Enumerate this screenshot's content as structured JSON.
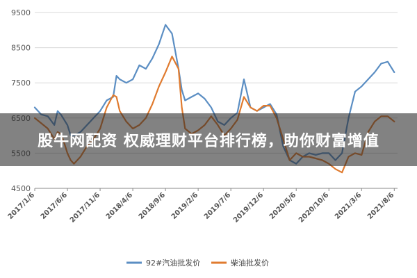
{
  "overlay": {
    "caption": "股牛网配资 权威理财平台排行榜，助你财富增值"
  },
  "colors": {
    "series1": "#5b8ec3",
    "series2": "#e07b2f",
    "grid": "#d8d8d8",
    "axis": "#888888"
  },
  "chart_data": {
    "type": "line",
    "title": "",
    "xlabel": "",
    "ylabel": "",
    "ylim": [
      4500,
      9500
    ],
    "yticks": [
      4500,
      5500,
      6500,
      7500,
      8500,
      9500
    ],
    "x_tick_labels": [
      "2017/1/6",
      "2017/6/6",
      "2017/11/6",
      "2018/4/6",
      "2018/9/6",
      "2019/2/6",
      "2019/7/6",
      "2019/12/6",
      "2020/5/6",
      "2020/10/6",
      "2021/3/6",
      "2021/8/6"
    ],
    "xlim": [
      0,
      55.5
    ],
    "grid": "horizontal",
    "legend": "bottom",
    "series": [
      {
        "name": "92#汽油批发价",
        "points": [
          [
            0,
            6800
          ],
          [
            1,
            6600
          ],
          [
            2,
            6550
          ],
          [
            3,
            6300
          ],
          [
            3.5,
            6700
          ],
          [
            4,
            6600
          ],
          [
            4.5,
            6450
          ],
          [
            5,
            6300
          ],
          [
            5.5,
            6000
          ],
          [
            6,
            6000
          ],
          [
            7,
            6100
          ],
          [
            8,
            6300
          ],
          [
            9,
            6500
          ],
          [
            10,
            6700
          ],
          [
            11,
            7000
          ],
          [
            12,
            7100
          ],
          [
            12.5,
            7700
          ],
          [
            13,
            7600
          ],
          [
            14,
            7500
          ],
          [
            15,
            7600
          ],
          [
            16,
            8000
          ],
          [
            17,
            7900
          ],
          [
            18,
            8200
          ],
          [
            19,
            8600
          ],
          [
            20,
            9150
          ],
          [
            21,
            8900
          ],
          [
            22,
            7900
          ],
          [
            22.5,
            7300
          ],
          [
            23,
            7000
          ],
          [
            24,
            7100
          ],
          [
            25,
            7200
          ],
          [
            26,
            7050
          ],
          [
            27,
            6800
          ],
          [
            28,
            6400
          ],
          [
            29,
            6300
          ],
          [
            30,
            6500
          ],
          [
            31,
            6650
          ],
          [
            32,
            7600
          ],
          [
            33,
            6800
          ],
          [
            34,
            6700
          ],
          [
            35,
            6800
          ],
          [
            36,
            6900
          ],
          [
            37,
            6600
          ],
          [
            38,
            5700
          ],
          [
            39,
            5300
          ],
          [
            40,
            5200
          ],
          [
            41,
            5400
          ],
          [
            42,
            5500
          ],
          [
            43,
            5450
          ],
          [
            44,
            5500
          ],
          [
            45,
            5500
          ],
          [
            46,
            5300
          ],
          [
            47,
            5500
          ],
          [
            48,
            6500
          ],
          [
            49,
            7250
          ],
          [
            50,
            7400
          ],
          [
            51,
            7600
          ],
          [
            52,
            7800
          ],
          [
            53,
            8050
          ],
          [
            54,
            8100
          ],
          [
            55,
            7800
          ]
        ]
      },
      {
        "name": "柴油批发价",
        "points": [
          [
            0,
            6500
          ],
          [
            1,
            6350
          ],
          [
            2,
            6200
          ],
          [
            3,
            5900
          ],
          [
            3.5,
            6100
          ],
          [
            4,
            6050
          ],
          [
            4.5,
            5800
          ],
          [
            5,
            5500
          ],
          [
            5.5,
            5300
          ],
          [
            6,
            5200
          ],
          [
            7,
            5400
          ],
          [
            8,
            5700
          ],
          [
            9,
            5900
          ],
          [
            10,
            6200
          ],
          [
            11,
            6800
          ],
          [
            12,
            7150
          ],
          [
            12.5,
            7100
          ],
          [
            13,
            6700
          ],
          [
            14,
            6400
          ],
          [
            15,
            6200
          ],
          [
            16,
            6300
          ],
          [
            17,
            6500
          ],
          [
            18,
            6900
          ],
          [
            19,
            7400
          ],
          [
            20,
            7800
          ],
          [
            21,
            8250
          ],
          [
            22,
            7900
          ],
          [
            22.5,
            6800
          ],
          [
            23,
            6200
          ],
          [
            24,
            6050
          ],
          [
            25,
            6150
          ],
          [
            26,
            6300
          ],
          [
            27,
            6550
          ],
          [
            28,
            6300
          ],
          [
            29,
            6000
          ],
          [
            30,
            6200
          ],
          [
            31,
            6450
          ],
          [
            32,
            7100
          ],
          [
            33,
            6800
          ],
          [
            34,
            6700
          ],
          [
            35,
            6850
          ],
          [
            36,
            6850
          ],
          [
            37,
            6500
          ],
          [
            38,
            5900
          ],
          [
            39,
            5300
          ],
          [
            40,
            5500
          ],
          [
            41,
            5400
          ],
          [
            42,
            5400
          ],
          [
            43,
            5350
          ],
          [
            44,
            5300
          ],
          [
            45,
            5200
          ],
          [
            46,
            5050
          ],
          [
            47,
            4950
          ],
          [
            48,
            5400
          ],
          [
            49,
            5500
          ],
          [
            50,
            5450
          ],
          [
            51,
            6100
          ],
          [
            52,
            6400
          ],
          [
            53,
            6550
          ],
          [
            54,
            6550
          ],
          [
            55,
            6400
          ]
        ]
      }
    ]
  }
}
